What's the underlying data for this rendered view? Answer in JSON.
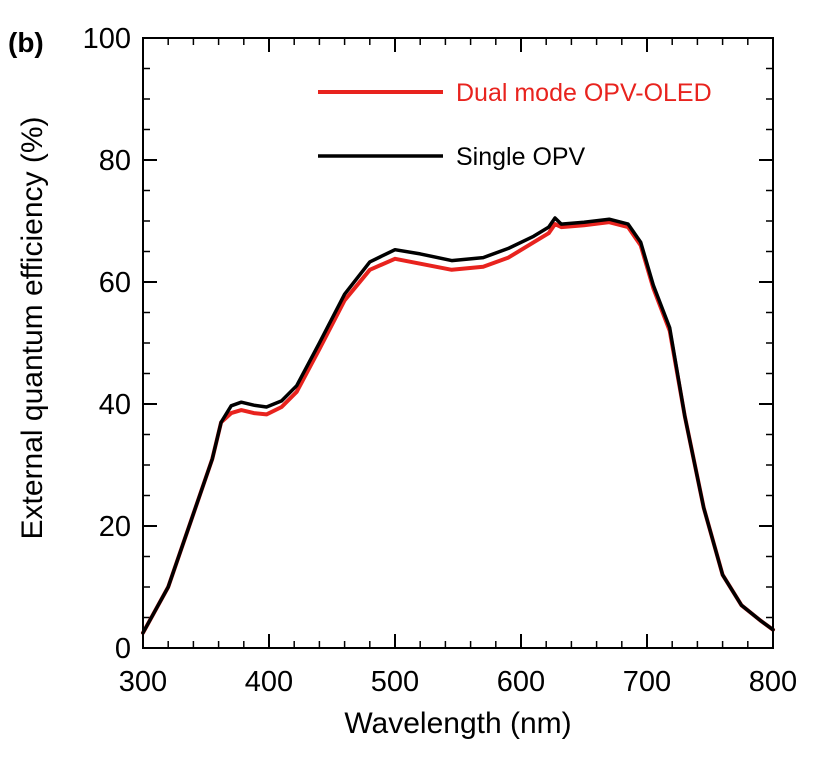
{
  "chart_data": {
    "type": "line",
    "panel_label": "(b)",
    "xlabel": "Wavelength (nm)",
    "ylabel": "External quantum efficiency (%)",
    "xlim": [
      300,
      800
    ],
    "ylim": [
      0,
      100
    ],
    "x_ticks": [
      300,
      400,
      500,
      600,
      700,
      800
    ],
    "y_ticks": [
      0,
      20,
      40,
      60,
      80,
      100
    ],
    "x_minor_step": 20,
    "y_minor_step": 5,
    "grid": false,
    "legend_position": "top-right",
    "series": [
      {
        "name": "Dual mode OPV-OLED",
        "color": "#e8231e",
        "x": [
          300,
          320,
          340,
          355,
          362,
          370,
          378,
          388,
          398,
          410,
          422,
          440,
          460,
          480,
          500,
          520,
          545,
          570,
          590,
          610,
          622,
          627,
          632,
          650,
          670,
          685,
          695,
          705,
          718,
          730,
          745,
          760,
          775,
          790,
          800
        ],
        "y": [
          2.5,
          10,
          22,
          31,
          37,
          38.5,
          39,
          38.5,
          38.3,
          39.5,
          42,
          49,
          57,
          62,
          63.8,
          63,
          62,
          62.5,
          64,
          66.5,
          68,
          69.5,
          69,
          69.3,
          69.8,
          69,
          66,
          59,
          52,
          38,
          23,
          12,
          7,
          4.5,
          3
        ]
      },
      {
        "name": "Single OPV",
        "color": "#000000",
        "x": [
          300,
          320,
          340,
          355,
          362,
          370,
          378,
          388,
          398,
          410,
          422,
          440,
          460,
          480,
          500,
          520,
          545,
          570,
          590,
          610,
          622,
          627,
          632,
          650,
          670,
          685,
          695,
          705,
          718,
          730,
          745,
          760,
          775,
          790,
          800
        ],
        "y": [
          2.5,
          10,
          22,
          31,
          37,
          39.7,
          40.3,
          39.8,
          39.5,
          40.5,
          43,
          50,
          58,
          63.3,
          65.3,
          64.6,
          63.5,
          64,
          65.5,
          67.5,
          69,
          70.5,
          69.5,
          69.8,
          70.3,
          69.5,
          66.5,
          59.5,
          52.5,
          38,
          23,
          12,
          7,
          4.5,
          3
        ]
      }
    ]
  }
}
